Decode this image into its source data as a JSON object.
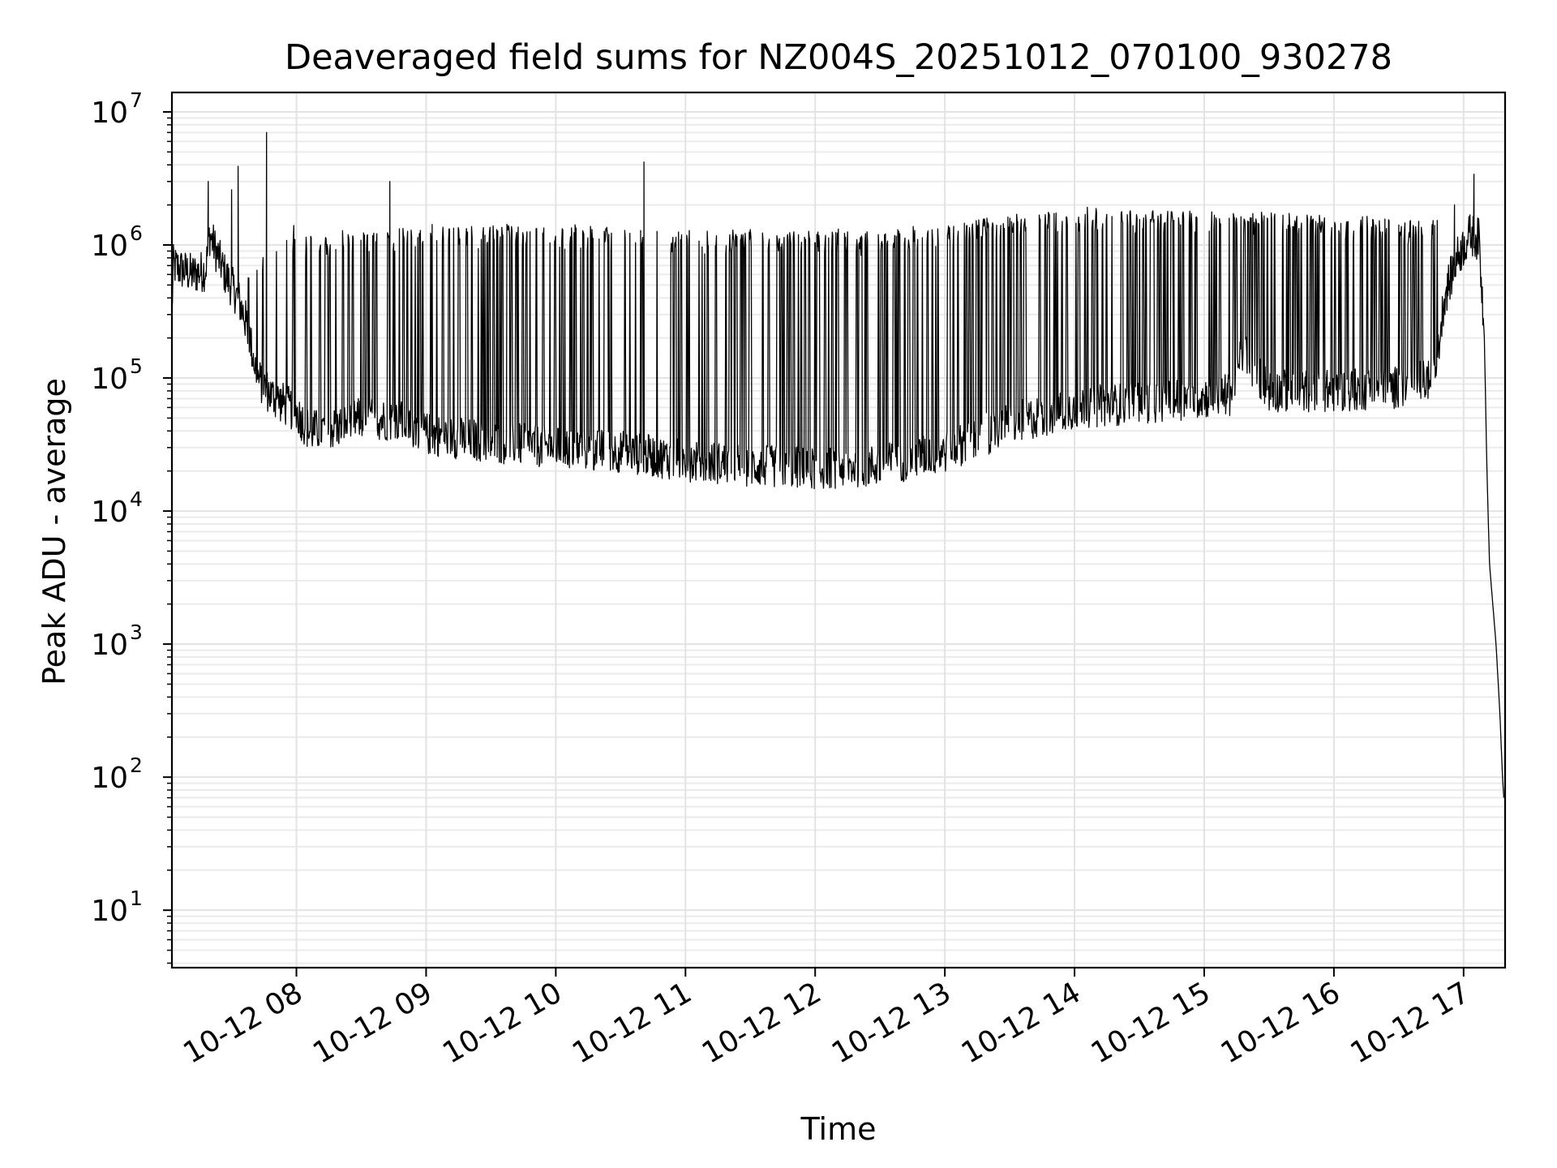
{
  "chart_data": {
    "type": "line",
    "title": "Deaveraged field sums for NZ004S_20251012_070100_930278",
    "xlabel": "Time",
    "ylabel": "Peak ADU - average",
    "yscale": "log",
    "ylim": [
      3.7,
      14000000
    ],
    "xlim_hours": [
      7.04,
      17.32
    ],
    "grid": true,
    "x_ticks": [
      {
        "hour": 8,
        "label": "10-12 08"
      },
      {
        "hour": 9,
        "label": "10-12 09"
      },
      {
        "hour": 10,
        "label": "10-12 10"
      },
      {
        "hour": 11,
        "label": "10-12 11"
      },
      {
        "hour": 12,
        "label": "10-12 12"
      },
      {
        "hour": 13,
        "label": "10-12 13"
      },
      {
        "hour": 14,
        "label": "10-12 14"
      },
      {
        "hour": 15,
        "label": "10-12 15"
      },
      {
        "hour": 16,
        "label": "10-12 16"
      },
      {
        "hour": 17,
        "label": "10-12 17"
      }
    ],
    "y_ticks": [
      {
        "value": 10,
        "base": "10",
        "exp": "1"
      },
      {
        "value": 100,
        "base": "10",
        "exp": "2"
      },
      {
        "value": 1000,
        "base": "10",
        "exp": "3"
      },
      {
        "value": 10000,
        "base": "10",
        "exp": "4"
      },
      {
        "value": 100000,
        "base": "10",
        "exp": "5"
      },
      {
        "value": 1000000,
        "base": "10",
        "exp": "6"
      },
      {
        "value": 10000000,
        "base": "10",
        "exp": "7"
      }
    ],
    "series": [
      {
        "name": "Peak ADU - average",
        "color": "#000000",
        "baseline": [
          [
            7.04,
            300000
          ],
          [
            7.05,
            700000
          ],
          [
            7.2,
            600000
          ],
          [
            7.3,
            650000
          ],
          [
            7.33,
            1200000
          ],
          [
            7.38,
            900000
          ],
          [
            7.45,
            600000
          ],
          [
            7.55,
            400000
          ],
          [
            7.62,
            250000
          ],
          [
            7.7,
            100000
          ],
          [
            7.8,
            75000
          ],
          [
            8.0,
            55000
          ],
          [
            8.1,
            40000
          ],
          [
            8.3,
            42000
          ],
          [
            8.5,
            50000
          ],
          [
            8.8,
            48000
          ],
          [
            9.0,
            38000
          ],
          [
            9.5,
            33000
          ],
          [
            10.0,
            30000
          ],
          [
            10.5,
            28000
          ],
          [
            11.0,
            24000
          ],
          [
            11.5,
            22000
          ],
          [
            12.0,
            21000
          ],
          [
            12.5,
            22000
          ],
          [
            13.0,
            28000
          ],
          [
            13.5,
            45000
          ],
          [
            14.0,
            60000
          ],
          [
            14.5,
            65000
          ],
          [
            15.0,
            72000
          ],
          [
            15.2,
            75000
          ],
          [
            15.3,
            160000
          ],
          [
            15.4,
            110000
          ],
          [
            15.5,
            80000
          ],
          [
            16.0,
            80000
          ],
          [
            16.5,
            85000
          ],
          [
            16.78,
            100000
          ],
          [
            16.85,
            400000
          ],
          [
            16.95,
            800000
          ],
          [
            17.05,
            1200000
          ],
          [
            17.12,
            1100000
          ],
          [
            17.16,
            200000
          ],
          [
            17.18,
            20000
          ],
          [
            17.2,
            4000
          ],
          [
            17.25,
            1000
          ],
          [
            17.28,
            300
          ],
          [
            17.3,
            100
          ],
          [
            17.31,
            70
          ]
        ],
        "spike_envelope": [
          [
            7.6,
            600000
          ],
          [
            8.0,
            1000000
          ],
          [
            9.0,
            1200000
          ],
          [
            10.0,
            1200000
          ],
          [
            11.0,
            1100000
          ],
          [
            12.0,
            1100000
          ],
          [
            12.5,
            1100000
          ],
          [
            13.0,
            1200000
          ],
          [
            13.5,
            1400000
          ],
          [
            14.0,
            1600000
          ],
          [
            15.0,
            1600000
          ],
          [
            16.0,
            1400000
          ],
          [
            16.8,
            1300000
          ]
        ],
        "peaks": [
          [
            7.32,
            3000000
          ],
          [
            7.5,
            2600000
          ],
          [
            7.55,
            3900000
          ],
          [
            7.77,
            7000000
          ],
          [
            7.98,
            1400000
          ],
          [
            8.72,
            3000000
          ],
          [
            10.68,
            4200000
          ],
          [
            16.93,
            2000000
          ],
          [
            17.08,
            3400000
          ]
        ]
      }
    ]
  }
}
